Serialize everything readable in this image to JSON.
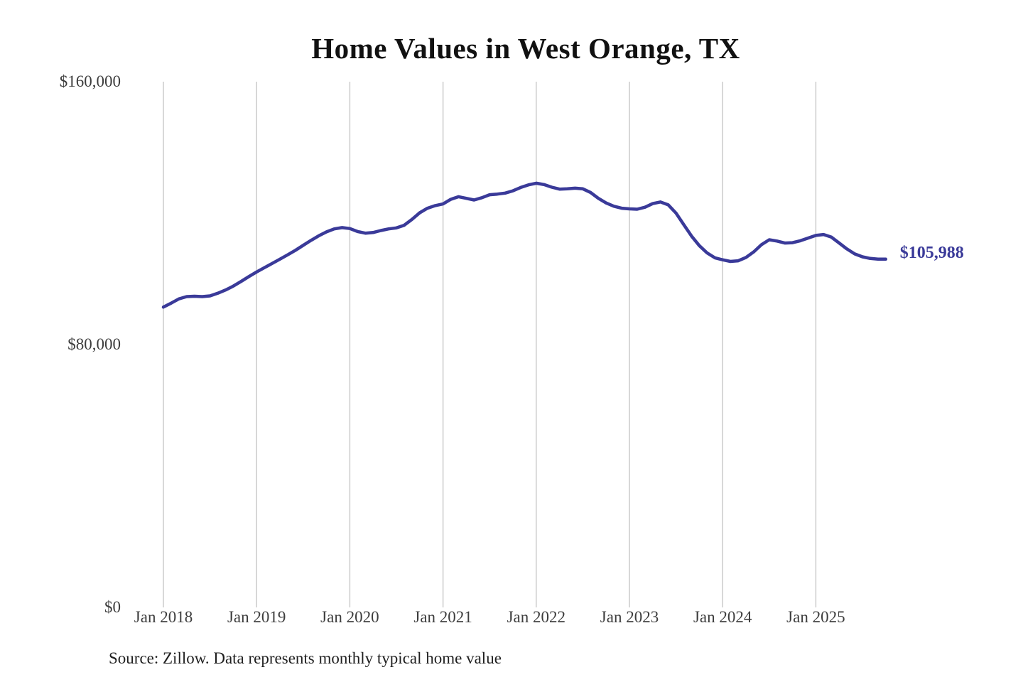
{
  "page": {
    "background": "#ffffff"
  },
  "header": {
    "title": "Home Values in West Orange, TX"
  },
  "footer": {
    "source_note": "Source: Zillow. Data represents monthly typical home value"
  },
  "annotation": {
    "latest_value_label": "$105,988"
  },
  "colors": {
    "line": "#3a3a99",
    "grid": "#cccccc",
    "tick_text": "#3d3d3d",
    "title_text": "#111111",
    "annotation_text": "#3a3a99",
    "source_text": "#1f1f1f"
  },
  "chart_data": {
    "type": "line",
    "title": "Home Values in West Orange, TX",
    "xlabel": "",
    "ylabel": "",
    "ylim": [
      0,
      160000
    ],
    "grid": "vertical-yearly-gridlines",
    "legend": "none",
    "y_ticks": [
      {
        "label": "$0",
        "value": 0
      },
      {
        "label": "$80,000",
        "value": 80000
      },
      {
        "label": "$160,000",
        "value": 160000
      }
    ],
    "x_tick_labels": [
      "Jan 2018",
      "Jan 2019",
      "Jan 2020",
      "Jan 2021",
      "Jan 2022",
      "Jan 2023",
      "Jan 2024",
      "Jan 2025"
    ],
    "x": [
      "2018-01",
      "2018-02",
      "2018-03",
      "2018-04",
      "2018-05",
      "2018-06",
      "2018-07",
      "2018-08",
      "2018-09",
      "2018-10",
      "2018-11",
      "2018-12",
      "2019-01",
      "2019-02",
      "2019-03",
      "2019-04",
      "2019-05",
      "2019-06",
      "2019-07",
      "2019-08",
      "2019-09",
      "2019-10",
      "2019-11",
      "2019-12",
      "2020-01",
      "2020-02",
      "2020-03",
      "2020-04",
      "2020-05",
      "2020-06",
      "2020-07",
      "2020-08",
      "2020-09",
      "2020-10",
      "2020-11",
      "2020-12",
      "2021-01",
      "2021-02",
      "2021-03",
      "2021-04",
      "2021-05",
      "2021-06",
      "2021-07",
      "2021-08",
      "2021-09",
      "2021-10",
      "2021-11",
      "2021-12",
      "2022-01",
      "2022-02",
      "2022-03",
      "2022-04",
      "2022-05",
      "2022-06",
      "2022-07",
      "2022-08",
      "2022-09",
      "2022-10",
      "2022-11",
      "2022-12",
      "2023-01",
      "2023-02",
      "2023-03",
      "2023-04",
      "2023-05",
      "2023-06",
      "2023-07",
      "2023-08",
      "2023-09",
      "2023-10",
      "2023-11",
      "2023-12",
      "2024-01",
      "2024-02",
      "2024-03",
      "2024-04",
      "2024-05",
      "2024-06",
      "2024-07",
      "2024-08",
      "2024-09",
      "2024-10",
      "2024-11",
      "2024-12",
      "2025-01",
      "2025-02",
      "2025-03",
      "2025-04",
      "2025-05",
      "2025-06",
      "2025-07",
      "2025-08",
      "2025-09",
      "2025-10"
    ],
    "values": [
      91400,
      92600,
      93900,
      94600,
      94700,
      94600,
      94800,
      95600,
      96600,
      97800,
      99200,
      100700,
      102100,
      103400,
      104700,
      106000,
      107300,
      108700,
      110200,
      111700,
      113100,
      114300,
      115200,
      115600,
      115300,
      114400,
      113900,
      114100,
      114700,
      115200,
      115500,
      116300,
      118100,
      120100,
      121500,
      122300,
      122800,
      124200,
      125000,
      124500,
      124000,
      124700,
      125600,
      125800,
      126100,
      126800,
      127800,
      128600,
      129100,
      128700,
      127900,
      127300,
      127400,
      127600,
      127400,
      126300,
      124500,
      123100,
      122100,
      121500,
      121300,
      121200,
      121800,
      122900,
      123400,
      122500,
      120000,
      116500,
      113000,
      110100,
      107900,
      106400,
      105800,
      105300,
      105500,
      106500,
      108200,
      110400,
      111900,
      111500,
      110900,
      111000,
      111600,
      112400,
      113200,
      113500,
      112700,
      110900,
      109100,
      107600,
      106700,
      106200,
      106000,
      105988
    ],
    "latest": {
      "month": "2025-10",
      "value": 105988,
      "label": "$105,988"
    }
  }
}
